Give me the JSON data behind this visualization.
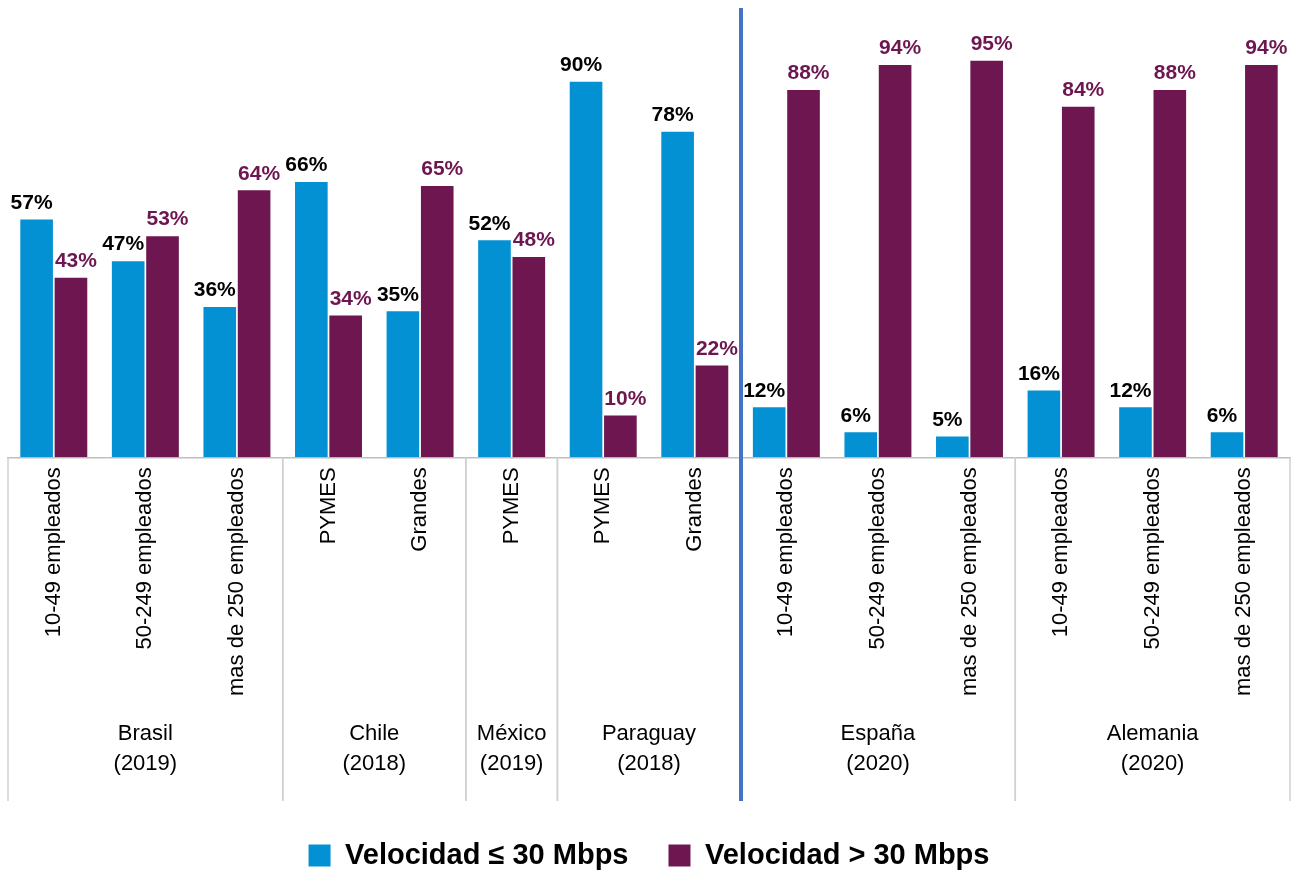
{
  "chart_data": {
    "type": "bar",
    "categories": [
      "10-49 empleados",
      "50-249 empleados",
      "mas de 250 empleados",
      "PYMES",
      "Grandes",
      "PYMES",
      "PYMES",
      "Grandes",
      "10-49 empleados",
      "50-249 empleados",
      "mas de 250 empleados",
      "10-49 empleados",
      "50-249 empleados",
      "mas de 250 empleados"
    ],
    "series": [
      {
        "name": "Velocidad ≤ 30 Mbps",
        "color": "#0391d3",
        "values": [
          57,
          47,
          36,
          66,
          35,
          52,
          90,
          78,
          12,
          6,
          5,
          16,
          12,
          6
        ],
        "value_labels": [
          "57%",
          "47%",
          "36%",
          "66%",
          "35%",
          "52%",
          "90%",
          "78%",
          "12%",
          "6%",
          "5%",
          "16%",
          "12%",
          "6%"
        ]
      },
      {
        "name": "Velocidad > 30 Mbps",
        "color": "#6d1650",
        "values": [
          43,
          53,
          64,
          34,
          65,
          48,
          10,
          22,
          88,
          94,
          95,
          84,
          88,
          94
        ],
        "value_labels": [
          "43%",
          "53%",
          "64%",
          "34%",
          "65%",
          "48%",
          "10%",
          "22%",
          "88%",
          "94%",
          "95%",
          "84%",
          "88%",
          "94%"
        ]
      }
    ],
    "annotations": [
      "Brasil\n(2019)",
      "Chile\n(2018)",
      "México\n(2019)",
      "Paraguay\n(2018)",
      "España\n(2020)",
      "Alemania\n(2020)"
    ],
    "grid": false,
    "legend": "bottom"
  }
}
